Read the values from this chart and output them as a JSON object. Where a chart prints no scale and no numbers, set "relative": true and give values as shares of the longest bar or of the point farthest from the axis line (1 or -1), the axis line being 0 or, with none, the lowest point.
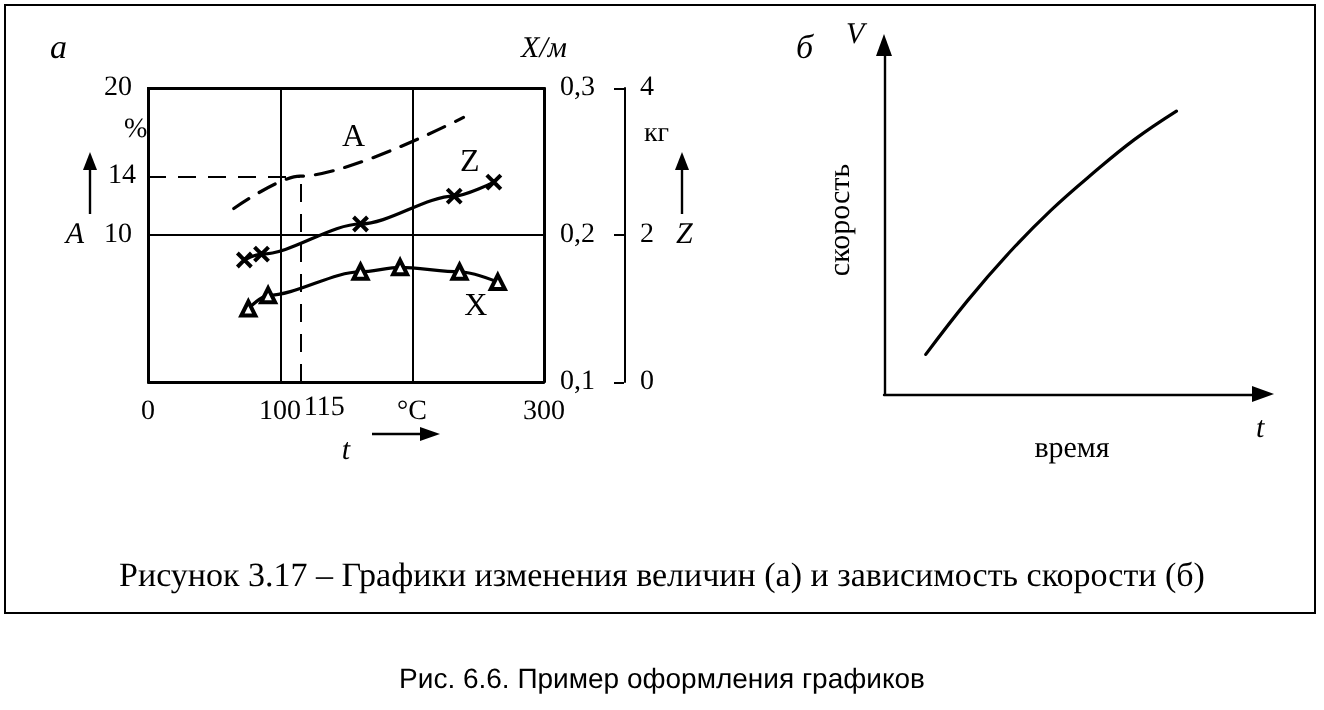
{
  "chart_data": [
    {
      "type": "line",
      "title": "а",
      "xlabel": "t",
      "ylabel": "A",
      "y2label": "X/м",
      "y3label": "Z",
      "xlim": [
        0,
        300
      ],
      "xticks": [
        0,
        100,
        {
          "value": 200,
          "label": "°C"
        },
        300
      ],
      "ylim": [
        0,
        20
      ],
      "yticks": [
        10,
        20
      ],
      "y2lim": [
        0.1,
        0.3
      ],
      "y2ticks": [
        {
          "value": 0.1,
          "label": "0,1"
        },
        {
          "value": 0.2,
          "label": "0,2"
        },
        {
          "value": 0.3,
          "label": "0,3"
        }
      ],
      "y3lim": [
        0,
        4
      ],
      "y3ticks": [
        0,
        2,
        4
      ],
      "grid": true,
      "ref_lines": [
        {
          "axis": "x",
          "value": 115,
          "label": "115",
          "line_style": "dashed"
        },
        {
          "axis": "y",
          "value": 14,
          "label": "14",
          "line_style": "dashed"
        }
      ],
      "annotations": [
        "%",
        "кг",
        "Рисунок 3.17 – Графики изменения величин (а) и зависимость скорости (б)",
        "Рис. 6.6. Пример оформления графиков"
      ],
      "series": [
        {
          "name": "A",
          "color": "#000000",
          "line_style": "dashed",
          "marker": "none",
          "x": [
            65,
            115,
            239
          ],
          "values": [
            11.8,
            14,
            18.0
          ]
        },
        {
          "name": "Z",
          "color": "#000000",
          "axis": "y3",
          "line_style": "solid",
          "marker": "cross",
          "x": [
            73,
            86,
            161,
            232,
            262
          ],
          "values": [
            1.66,
            1.74,
            2.15,
            2.53,
            2.72
          ]
        },
        {
          "name": "X",
          "color": "#000000",
          "axis": "y2",
          "line_style": "solid",
          "marker": "triangle",
          "x": [
            76,
            91,
            161,
            191,
            236,
            265
          ],
          "values": [
            0.15,
            0.159,
            0.175,
            0.178,
            0.175,
            0.168
          ]
        }
      ]
    },
    {
      "type": "line",
      "title": "б",
      "xlabel": "время",
      "ylabel": "скорость",
      "annotations": [
        "V",
        "t"
      ],
      "relative": true,
      "categories": [
        null,
        null,
        null,
        null,
        null,
        null,
        null,
        null,
        null,
        null
      ],
      "color": "#000000",
      "marker": "none",
      "line_style": "solid",
      "values": [
        null,
        0.14,
        0.33,
        0.5,
        0.65,
        0.78,
        0.9,
        1.0,
        null,
        null
      ]
    }
  ]
}
